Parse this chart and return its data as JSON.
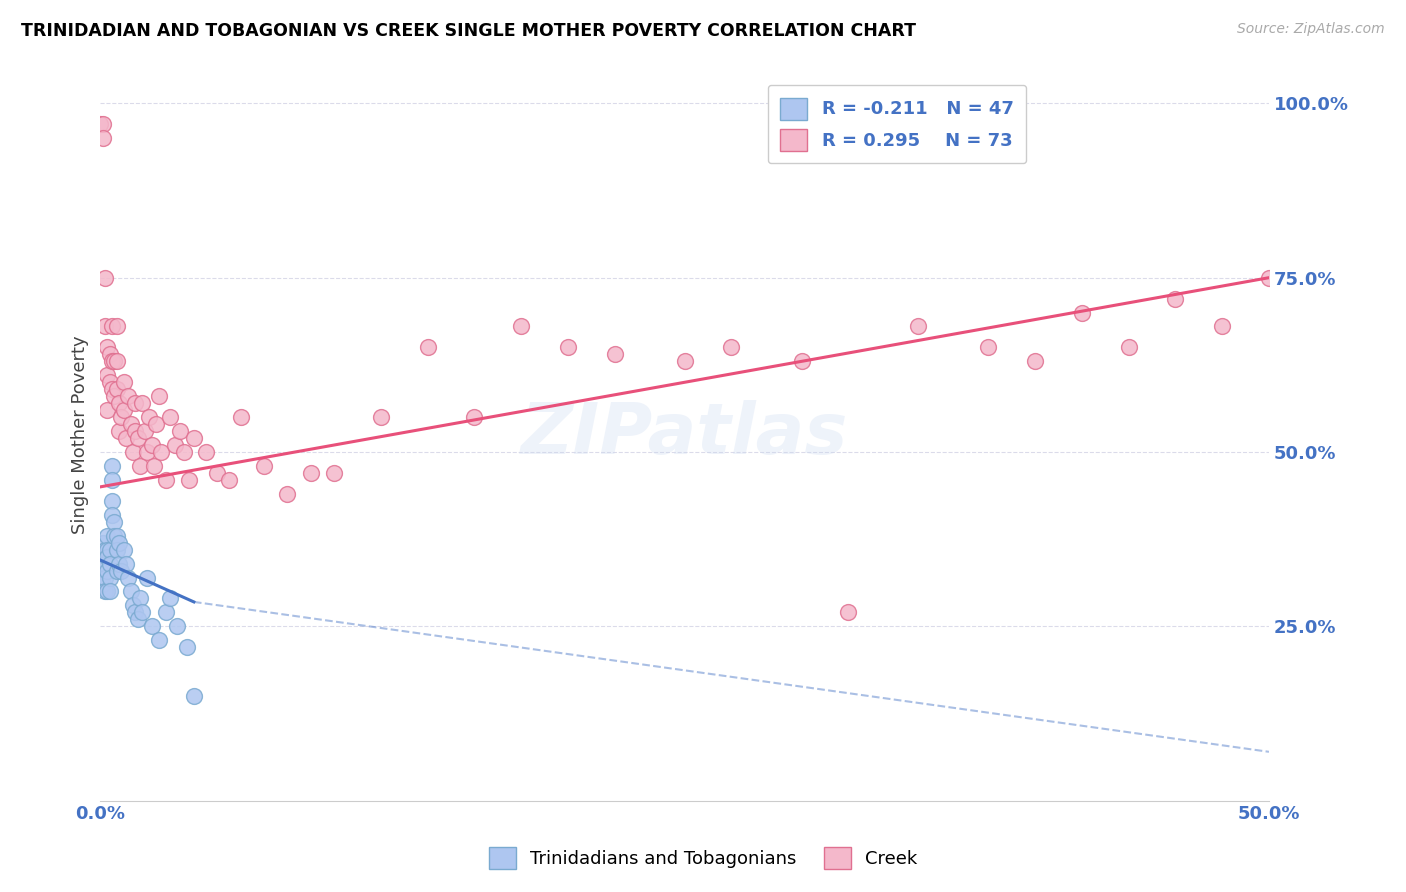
{
  "title": "TRINIDADIAN AND TOBAGONIAN VS CREEK SINGLE MOTHER POVERTY CORRELATION CHART",
  "source": "Source: ZipAtlas.com",
  "ylabel": "Single Mother Poverty",
  "blue_fill": "#aec6f0",
  "blue_edge": "#7aaad0",
  "pink_fill": "#f4b8cb",
  "pink_edge": "#e07090",
  "blue_line_color": "#4472c4",
  "pink_line_color": "#e8507a",
  "background_color": "#ffffff",
  "grid_color": "#d8d8e8",
  "axis_label_color": "#4472c4",
  "title_color": "#000000",
  "watermark": "ZIPatlas",
  "blue_x": [
    0.0,
    0.0,
    0.001,
    0.001,
    0.001,
    0.002,
    0.002,
    0.002,
    0.002,
    0.003,
    0.003,
    0.003,
    0.003,
    0.003,
    0.004,
    0.004,
    0.004,
    0.004,
    0.005,
    0.005,
    0.005,
    0.005,
    0.006,
    0.006,
    0.007,
    0.007,
    0.007,
    0.008,
    0.008,
    0.009,
    0.01,
    0.011,
    0.012,
    0.013,
    0.014,
    0.015,
    0.016,
    0.017,
    0.018,
    0.02,
    0.022,
    0.025,
    0.028,
    0.03,
    0.033,
    0.037,
    0.04
  ],
  "blue_y": [
    0.35,
    0.33,
    0.37,
    0.34,
    0.31,
    0.36,
    0.34,
    0.32,
    0.3,
    0.38,
    0.36,
    0.35,
    0.33,
    0.3,
    0.36,
    0.34,
    0.32,
    0.3,
    0.48,
    0.46,
    0.43,
    0.41,
    0.4,
    0.38,
    0.38,
    0.36,
    0.33,
    0.37,
    0.34,
    0.33,
    0.36,
    0.34,
    0.32,
    0.3,
    0.28,
    0.27,
    0.26,
    0.29,
    0.27,
    0.32,
    0.25,
    0.23,
    0.27,
    0.29,
    0.25,
    0.22,
    0.15
  ],
  "pink_x": [
    0.0,
    0.001,
    0.001,
    0.002,
    0.002,
    0.003,
    0.003,
    0.003,
    0.004,
    0.004,
    0.005,
    0.005,
    0.005,
    0.006,
    0.006,
    0.007,
    0.007,
    0.007,
    0.008,
    0.008,
    0.009,
    0.01,
    0.01,
    0.011,
    0.012,
    0.013,
    0.014,
    0.015,
    0.015,
    0.016,
    0.017,
    0.018,
    0.019,
    0.02,
    0.021,
    0.022,
    0.023,
    0.024,
    0.025,
    0.026,
    0.028,
    0.03,
    0.032,
    0.034,
    0.036,
    0.038,
    0.04,
    0.045,
    0.05,
    0.055,
    0.06,
    0.07,
    0.08,
    0.09,
    0.1,
    0.12,
    0.14,
    0.16,
    0.18,
    0.2,
    0.22,
    0.25,
    0.27,
    0.3,
    0.32,
    0.35,
    0.38,
    0.4,
    0.42,
    0.44,
    0.46,
    0.48,
    0.5
  ],
  "pink_y": [
    0.97,
    0.97,
    0.95,
    0.75,
    0.68,
    0.65,
    0.61,
    0.56,
    0.64,
    0.6,
    0.68,
    0.63,
    0.59,
    0.63,
    0.58,
    0.68,
    0.63,
    0.59,
    0.57,
    0.53,
    0.55,
    0.6,
    0.56,
    0.52,
    0.58,
    0.54,
    0.5,
    0.57,
    0.53,
    0.52,
    0.48,
    0.57,
    0.53,
    0.5,
    0.55,
    0.51,
    0.48,
    0.54,
    0.58,
    0.5,
    0.46,
    0.55,
    0.51,
    0.53,
    0.5,
    0.46,
    0.52,
    0.5,
    0.47,
    0.46,
    0.55,
    0.48,
    0.44,
    0.47,
    0.47,
    0.55,
    0.65,
    0.55,
    0.68,
    0.65,
    0.64,
    0.63,
    0.65,
    0.63,
    0.27,
    0.68,
    0.65,
    0.63,
    0.7,
    0.65,
    0.72,
    0.68,
    0.75
  ],
  "pink_line_x0": 0.0,
  "pink_line_y0": 0.45,
  "pink_line_x1": 0.5,
  "pink_line_y1": 0.75,
  "blue_line_solid_x0": 0.0,
  "blue_line_solid_y0": 0.345,
  "blue_line_solid_x1": 0.04,
  "blue_line_solid_y1": 0.285,
  "blue_line_dash_x0": 0.04,
  "blue_line_dash_y0": 0.285,
  "blue_line_dash_x1": 0.5,
  "blue_line_dash_y1": 0.07,
  "xlim": [
    0.0,
    0.5
  ],
  "ylim": [
    0.0,
    1.05
  ]
}
